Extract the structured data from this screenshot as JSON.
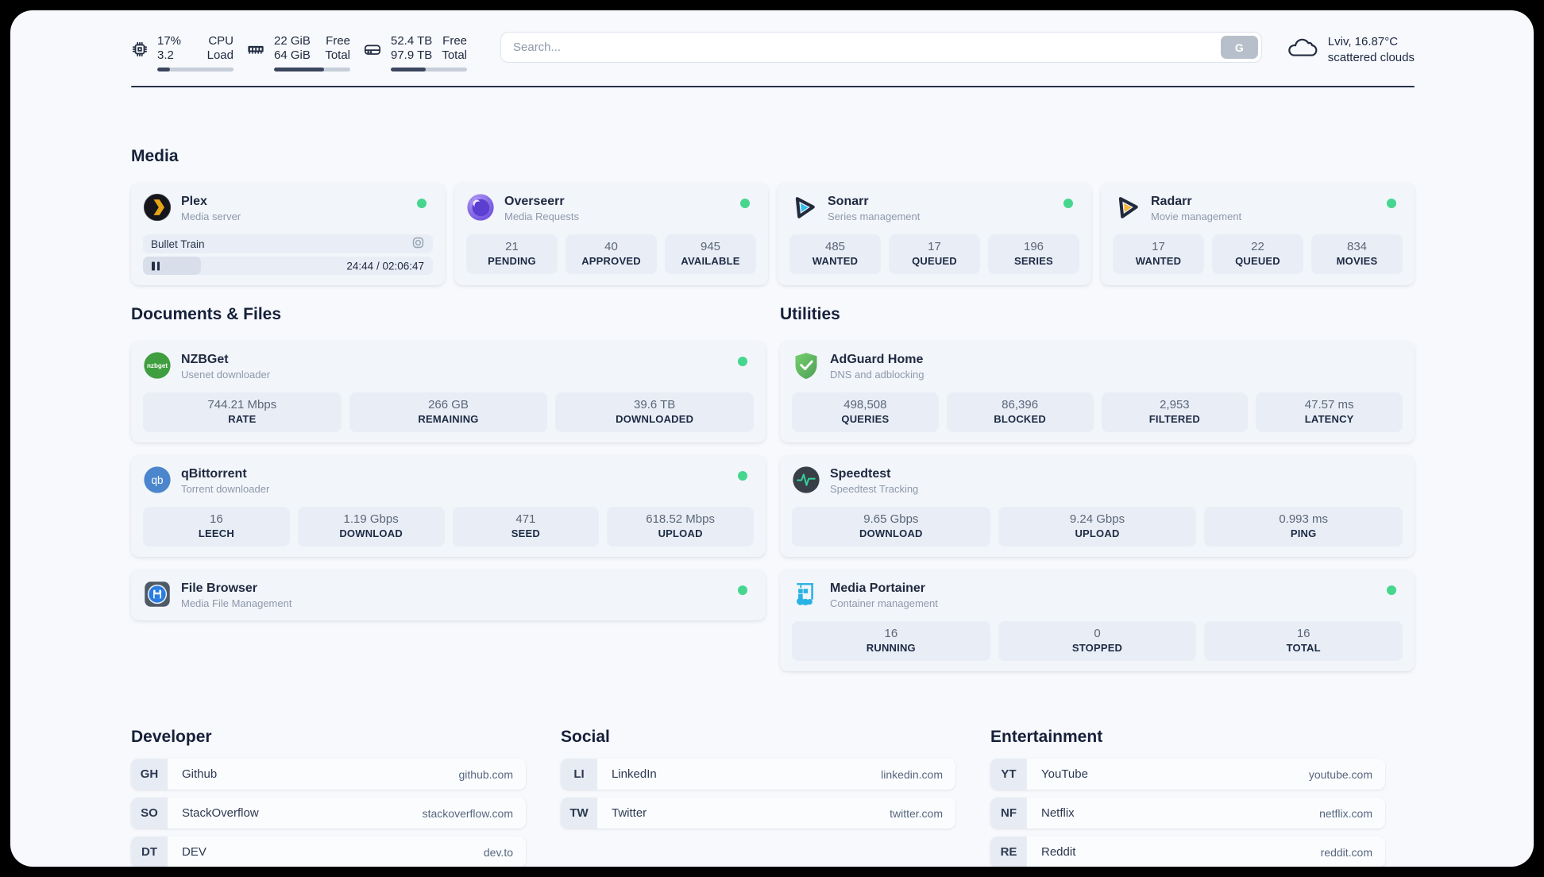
{
  "colors": {
    "status_online": "#46d68e",
    "panel_bg": "#f7f9fc",
    "plex_gold": "#e6a516",
    "sonarr_cyan": "#34bff2",
    "radarr_amber": "#f6b63c",
    "nzbget_green": "#3f9e3f",
    "qbittorrent_blue": "#4b86cd",
    "adguard_green": "#5fb760",
    "speedtest_green": "#33d39c",
    "portainer_blue": "#29b2e4"
  },
  "header": {
    "cpu": {
      "value1": "17%",
      "value2": "3.2",
      "label1": "CPU",
      "label2": "Load",
      "progress_pct": 17
    },
    "memory": {
      "value1": "22 GiB",
      "value2": "64 GiB",
      "label1": "Free",
      "label2": "Total",
      "progress_pct": 66
    },
    "disk": {
      "value1": "52.4 TB",
      "value2": "97.9 TB",
      "label1": "Free",
      "label2": "Total",
      "progress_pct": 46
    },
    "search": {
      "placeholder": "Search...",
      "button_label": "G"
    },
    "weather": {
      "location": "Lviv, 16.87°C",
      "condition": "scattered clouds"
    }
  },
  "sections": {
    "media": "Media",
    "documents": "Documents & Files",
    "utilities": "Utilities",
    "developer": "Developer",
    "social": "Social",
    "entertainment": "Entertainment"
  },
  "apps": {
    "plex": {
      "name": "Plex",
      "description": "Media server",
      "now_playing": "Bullet Train",
      "time_display": "24:44 / 02:06:47",
      "progress_pct": 20
    },
    "overseerr": {
      "name": "Overseerr",
      "description": "Media Requests",
      "stats": [
        {
          "value": "21",
          "label": "PENDING"
        },
        {
          "value": "40",
          "label": "APPROVED"
        },
        {
          "value": "945",
          "label": "AVAILABLE"
        }
      ]
    },
    "sonarr": {
      "name": "Sonarr",
      "description": "Series management",
      "stats": [
        {
          "value": "485",
          "label": "WANTED"
        },
        {
          "value": "17",
          "label": "QUEUED"
        },
        {
          "value": "196",
          "label": "SERIES"
        }
      ]
    },
    "radarr": {
      "name": "Radarr",
      "description": "Movie management",
      "stats": [
        {
          "value": "17",
          "label": "WANTED"
        },
        {
          "value": "22",
          "label": "QUEUED"
        },
        {
          "value": "834",
          "label": "MOVIES"
        }
      ]
    },
    "nzbget": {
      "name": "NZBGet",
      "description": "Usenet downloader",
      "stats": [
        {
          "value": "744.21 Mbps",
          "label": "RATE"
        },
        {
          "value": "266 GB",
          "label": "REMAINING"
        },
        {
          "value": "39.6 TB",
          "label": "DOWNLOADED"
        }
      ]
    },
    "qbittorrent": {
      "name": "qBittorrent",
      "description": "Torrent downloader",
      "stats": [
        {
          "value": "16",
          "label": "LEECH"
        },
        {
          "value": "1.19 Gbps",
          "label": "DOWNLOAD"
        },
        {
          "value": "471",
          "label": "SEED"
        },
        {
          "value": "618.52 Mbps",
          "label": "UPLOAD"
        }
      ]
    },
    "filebrowser": {
      "name": "File Browser",
      "description": "Media File Management"
    },
    "adguard": {
      "name": "AdGuard Home",
      "description": "DNS and adblocking",
      "stats": [
        {
          "value": "498,508",
          "label": "QUERIES"
        },
        {
          "value": "86,396",
          "label": "BLOCKED"
        },
        {
          "value": "2,953",
          "label": "FILTERED"
        },
        {
          "value": "47.57 ms",
          "label": "LATENCY"
        }
      ]
    },
    "speedtest": {
      "name": "Speedtest",
      "description": "Speedtest Tracking",
      "stats": [
        {
          "value": "9.65 Gbps",
          "label": "DOWNLOAD"
        },
        {
          "value": "9.24 Gbps",
          "label": "UPLOAD"
        },
        {
          "value": "0.993 ms",
          "label": "PING"
        }
      ]
    },
    "portainer": {
      "name": "Media Portainer",
      "description": "Container management",
      "stats": [
        {
          "value": "16",
          "label": "RUNNING"
        },
        {
          "value": "0",
          "label": "STOPPED"
        },
        {
          "value": "16",
          "label": "TOTAL"
        }
      ]
    }
  },
  "links": {
    "developer": [
      {
        "abbr": "GH",
        "name": "Github",
        "url": "github.com"
      },
      {
        "abbr": "SO",
        "name": "StackOverflow",
        "url": "stackoverflow.com"
      },
      {
        "abbr": "DT",
        "name": "DEV",
        "url": "dev.to"
      }
    ],
    "social": [
      {
        "abbr": "LI",
        "name": "LinkedIn",
        "url": "linkedin.com"
      },
      {
        "abbr": "TW",
        "name": "Twitter",
        "url": "twitter.com"
      }
    ],
    "entertainment": [
      {
        "abbr": "YT",
        "name": "YouTube",
        "url": "youtube.com"
      },
      {
        "abbr": "NF",
        "name": "Netflix",
        "url": "netflix.com"
      },
      {
        "abbr": "RE",
        "name": "Reddit",
        "url": "reddit.com"
      }
    ]
  }
}
